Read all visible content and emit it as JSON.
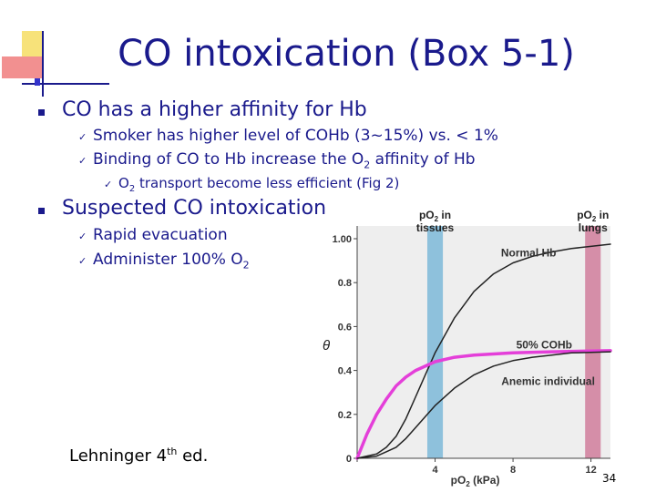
{
  "slide": {
    "title": "CO intoxication (Box 5-1)",
    "bullets": [
      {
        "text": "CO has a higher affinity for Hb",
        "subs": [
          {
            "text": "Smoker has higher level of COHb (3~15%) vs. < 1%"
          },
          {
            "pre": "Binding of CO to Hb increase the O",
            "sub": "2",
            "post": " affinity of Hb",
            "subs": [
              {
                "pre": "O",
                "sub": "2",
                "post": " transport become less efficient (Fig 2)"
              }
            ]
          }
        ]
      },
      {
        "text": "Suspected CO intoxication",
        "subs": [
          {
            "text": "Rapid evacuation"
          },
          {
            "pre": "Administer 100% O",
            "sub": "2"
          }
        ]
      }
    ],
    "reference": {
      "pre": "Lehninger 4",
      "sup": "th",
      "post": " ed."
    },
    "page_number": "34"
  },
  "colors": {
    "title": "#1a1a8c",
    "tissues_band": "#8ec1dc",
    "lungs_band": "#d58ea8",
    "coHb_curve": "#e43fd9",
    "plot_bg": "#eeeeee"
  },
  "chart_data": {
    "type": "line",
    "ylabel": "θ",
    "xlim": [
      0,
      13
    ],
    "ylim": [
      0,
      1.0
    ],
    "x_ticks": [
      "0",
      "4",
      "8",
      "12"
    ],
    "y_ticks": [
      "0",
      "0.2",
      "0.4",
      "0.6",
      "0.8",
      "1.00"
    ],
    "xlabel": {
      "pre": "pO",
      "sub": "2",
      "post": " (kPa)"
    },
    "bands": [
      {
        "label_pre": "pO",
        "label_sub": "2",
        "label_post": " in",
        "label_line2": "tissues",
        "x0": 3.6,
        "x1": 4.4,
        "color": "#8ec1dc"
      },
      {
        "label_pre": "pO",
        "label_sub": "2",
        "label_post": " in",
        "label_line2": "lungs",
        "x0": 11.7,
        "x1": 12.5,
        "color": "#d58ea8"
      }
    ],
    "series": [
      {
        "name": "Normal Hb",
        "color": "#222222",
        "width": 1.5,
        "x": [
          0,
          1,
          1.5,
          2,
          2.5,
          3,
          3.5,
          4,
          5,
          6,
          7,
          8,
          9,
          10,
          11,
          12,
          13
        ],
        "y": [
          0,
          0.02,
          0.05,
          0.1,
          0.18,
          0.28,
          0.38,
          0.48,
          0.64,
          0.76,
          0.84,
          0.89,
          0.92,
          0.94,
          0.955,
          0.965,
          0.975
        ]
      },
      {
        "name": "50% COHb",
        "color": "#e43fd9",
        "width": 3.5,
        "x": [
          0,
          0.5,
          1,
          1.5,
          2,
          2.5,
          3,
          4,
          5,
          6,
          8,
          10,
          13
        ],
        "y": [
          0,
          0.11,
          0.2,
          0.27,
          0.33,
          0.37,
          0.4,
          0.44,
          0.46,
          0.47,
          0.48,
          0.485,
          0.49
        ]
      },
      {
        "name": "Anemic individual",
        "color": "#222222",
        "width": 1.5,
        "x": [
          0,
          1,
          1.5,
          2,
          2.5,
          3,
          3.5,
          4,
          5,
          6,
          7,
          8,
          9,
          10,
          11,
          12,
          13
        ],
        "y": [
          0,
          0.01,
          0.03,
          0.05,
          0.09,
          0.14,
          0.19,
          0.24,
          0.32,
          0.38,
          0.42,
          0.445,
          0.46,
          0.47,
          0.48,
          0.482,
          0.485
        ]
      }
    ]
  }
}
